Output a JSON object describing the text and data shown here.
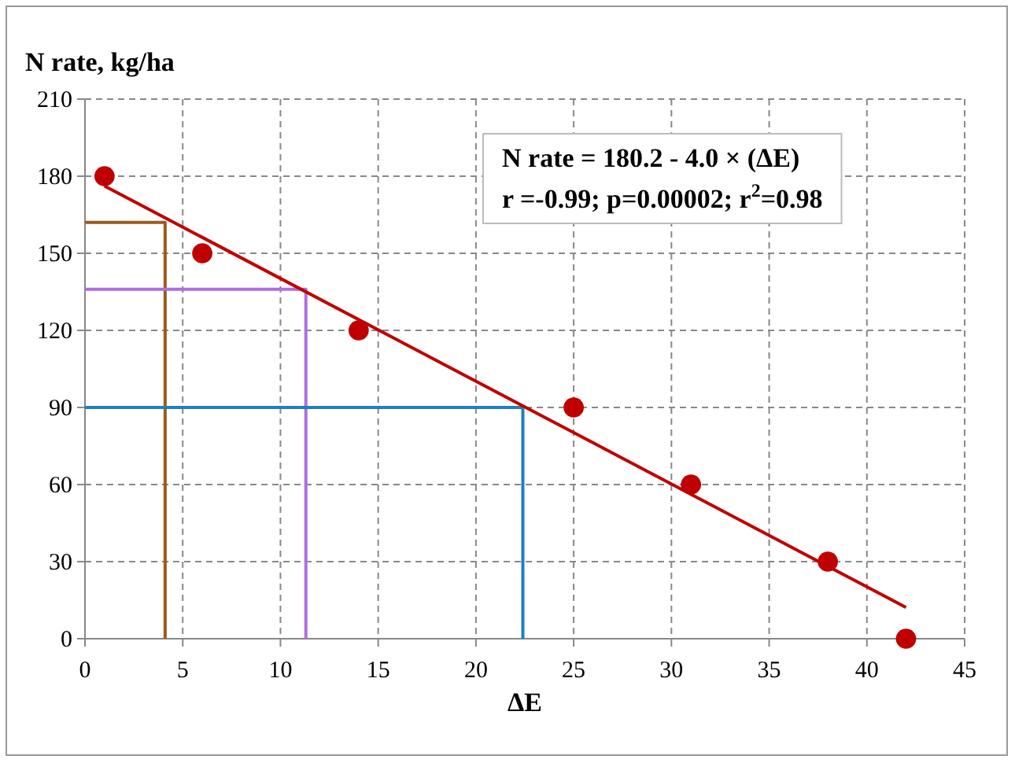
{
  "chart_data": {
    "type": "scatter",
    "title": "N rate, kg/ha",
    "xlabel": "ΔE",
    "annotations": [
      "N rate = 180.2 - 4.0 × (ΔE)",
      "r =-0.99; p=0.00002; r$^{2}$=0.98"
    ],
    "xlim": [
      0,
      45
    ],
    "xticks": [
      0,
      5,
      10,
      15,
      20,
      25,
      30,
      35,
      40,
      45
    ],
    "ylim": [
      0,
      210
    ],
    "yticks": [
      0,
      30,
      60,
      90,
      120,
      150,
      180,
      210
    ],
    "grid": true,
    "series": [
      {
        "type": "line",
        "color": "#9c5a1c",
        "x": [
          0,
          4.1,
          4.1
        ],
        "values": [
          162,
          162,
          0
        ]
      },
      {
        "type": "line",
        "color": "#b06ee0",
        "x": [
          0,
          11.3,
          11.3
        ],
        "values": [
          136,
          136,
          0
        ]
      },
      {
        "type": "line",
        "color": "#1f7fc0",
        "x": [
          0,
          22.4,
          22.4
        ],
        "values": [
          90,
          90,
          0
        ]
      },
      {
        "type": "line",
        "color": "#c00000",
        "x": [
          1,
          42
        ],
        "values": [
          176.2,
          12.2
        ]
      },
      {
        "marker": "circle",
        "color": "#c00000",
        "x": [
          1,
          6,
          14,
          25,
          31,
          38,
          42
        ],
        "values": [
          180,
          150,
          120,
          90,
          60,
          30,
          0
        ]
      }
    ]
  }
}
